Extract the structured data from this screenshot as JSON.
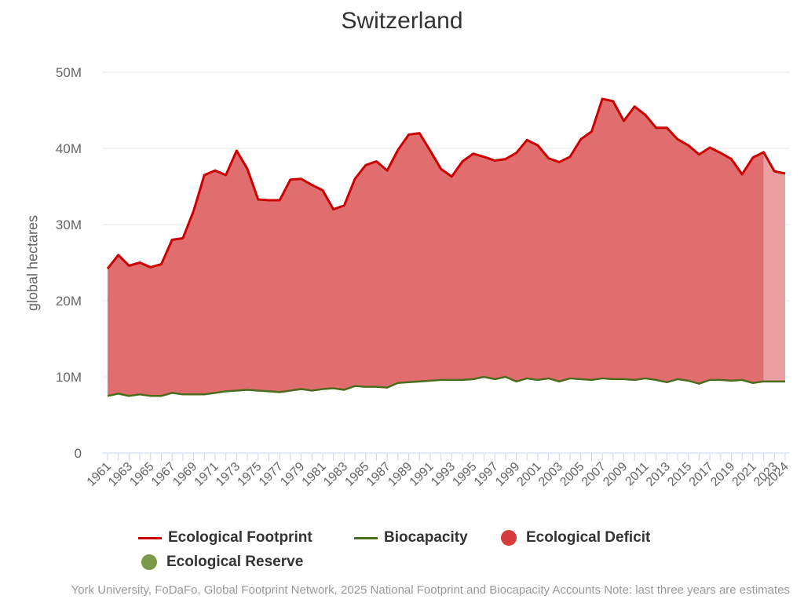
{
  "chart_data": {
    "type": "area",
    "title": "Switzerland",
    "ylabel": "global hectares",
    "ylim": [
      0,
      50000000
    ],
    "yticks": [
      {
        "value": 0,
        "label": "0"
      },
      {
        "value": 10000000,
        "label": "10M"
      },
      {
        "value": 20000000,
        "label": "20M"
      },
      {
        "value": 30000000,
        "label": "30M"
      },
      {
        "value": 40000000,
        "label": "40M"
      },
      {
        "value": 50000000,
        "label": "50M"
      }
    ],
    "x": [
      1961,
      1962,
      1963,
      1964,
      1965,
      1966,
      1967,
      1968,
      1969,
      1970,
      1971,
      1972,
      1973,
      1974,
      1975,
      1976,
      1977,
      1978,
      1979,
      1980,
      1981,
      1982,
      1983,
      1984,
      1985,
      1986,
      1987,
      1988,
      1989,
      1990,
      1991,
      1992,
      1993,
      1994,
      1995,
      1996,
      1997,
      1998,
      1999,
      2000,
      2001,
      2002,
      2003,
      2004,
      2005,
      2006,
      2007,
      2008,
      2009,
      2010,
      2011,
      2012,
      2013,
      2014,
      2015,
      2016,
      2017,
      2018,
      2019,
      2020,
      2021,
      2022,
      2023,
      2024
    ],
    "xtick_labels": [
      "1961",
      "1963",
      "1965",
      "1967",
      "1969",
      "1971",
      "1973",
      "1975",
      "1977",
      "1979",
      "1981",
      "1983",
      "1985",
      "1987",
      "1989",
      "1991",
      "1993",
      "1995",
      "1997",
      "1999",
      "2001",
      "2003",
      "2005",
      "2007",
      "2009",
      "2011",
      "2013",
      "2015",
      "2017",
      "2019",
      "2021",
      "2023",
      "2024"
    ],
    "estimate_from_year": 2022,
    "grid": true,
    "legend_position": "bottom",
    "series": [
      {
        "name": "Ecological Footprint",
        "kind": "line",
        "color": "#cc0000",
        "values": [
          24.2,
          26.0,
          24.6,
          25.0,
          24.4,
          24.8,
          28.0,
          28.2,
          31.8,
          36.5,
          37.1,
          36.5,
          39.7,
          37.3,
          33.3,
          33.2,
          33.2,
          35.9,
          36.0,
          35.2,
          34.5,
          32.0,
          32.5,
          36.0,
          37.8,
          38.3,
          37.1,
          39.8,
          41.8,
          42.0,
          39.7,
          37.3,
          36.3,
          38.3,
          39.3,
          38.9,
          38.4,
          38.6,
          39.4,
          41.1,
          40.4,
          38.7,
          38.2,
          38.9,
          41.2,
          42.2,
          46.5,
          46.2,
          43.6,
          45.5,
          44.4,
          42.7,
          42.7,
          41.2,
          40.4,
          39.2,
          40.1,
          39.4,
          38.6,
          36.6,
          38.8,
          39.5,
          37.0,
          36.7
        ]
      },
      {
        "name": "Biocapacity",
        "kind": "line",
        "color": "#4d6b1c",
        "values": [
          7.5,
          7.8,
          7.5,
          7.7,
          7.5,
          7.5,
          7.9,
          7.7,
          7.7,
          7.7,
          7.9,
          8.1,
          8.2,
          8.3,
          8.2,
          8.1,
          8.0,
          8.2,
          8.4,
          8.2,
          8.4,
          8.5,
          8.3,
          8.8,
          8.7,
          8.7,
          8.6,
          9.2,
          9.3,
          9.4,
          9.5,
          9.6,
          9.6,
          9.6,
          9.7,
          10.0,
          9.7,
          10.0,
          9.4,
          9.8,
          9.6,
          9.8,
          9.4,
          9.8,
          9.7,
          9.6,
          9.8,
          9.7,
          9.7,
          9.6,
          9.8,
          9.6,
          9.3,
          9.7,
          9.5,
          9.1,
          9.6,
          9.6,
          9.5,
          9.6,
          9.2,
          9.4,
          9.4,
          9.4
        ]
      },
      {
        "name": "Ecological Deficit",
        "kind": "area",
        "color": "#d63c3c"
      },
      {
        "name": "Ecological Reserve",
        "kind": "area",
        "color": "#7a9a4a"
      }
    ],
    "value_unit_multiplier": 1000000,
    "credit": "York University, FoDaFo, Global Footprint Network, 2025 National Footprint and Biocapacity Accounts Note: last three years are estimates"
  }
}
